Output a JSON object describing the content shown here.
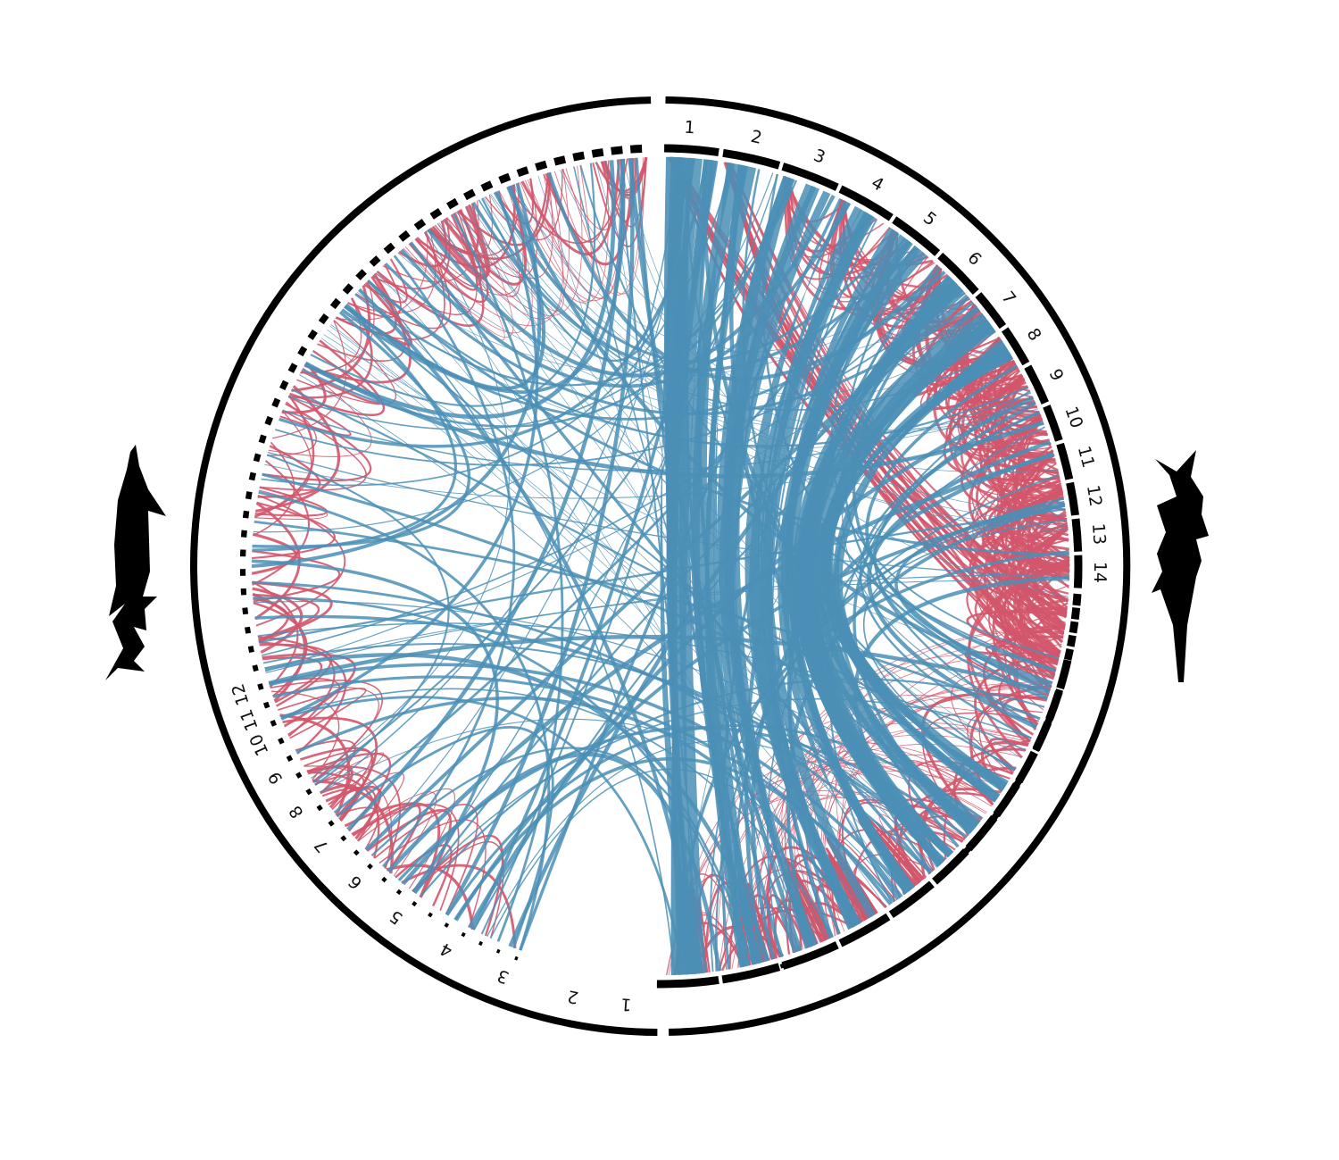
{
  "colors": {
    "link_red": "#d2566b",
    "link_blue": "#4b8fb6",
    "ideogram": "#000000",
    "background": "#ffffff"
  },
  "species_right": {
    "icon": "paddlefish-silhouette-icon",
    "chromosome_labels": [
      "1",
      "2",
      "3",
      "4",
      "5",
      "6",
      "7",
      "8",
      "9",
      "10",
      "11",
      "12",
      "13",
      "14"
    ],
    "minor_scaffold_ticks": 44
  },
  "species_left": {
    "icon": "sturgeon-silhouette-icon",
    "chromosome_labels": [
      "1",
      "2",
      "3",
      "4",
      "5",
      "6",
      "7",
      "8",
      "9",
      "10",
      "11",
      "12"
    ],
    "minor_scaffold_ticks": 60
  }
}
